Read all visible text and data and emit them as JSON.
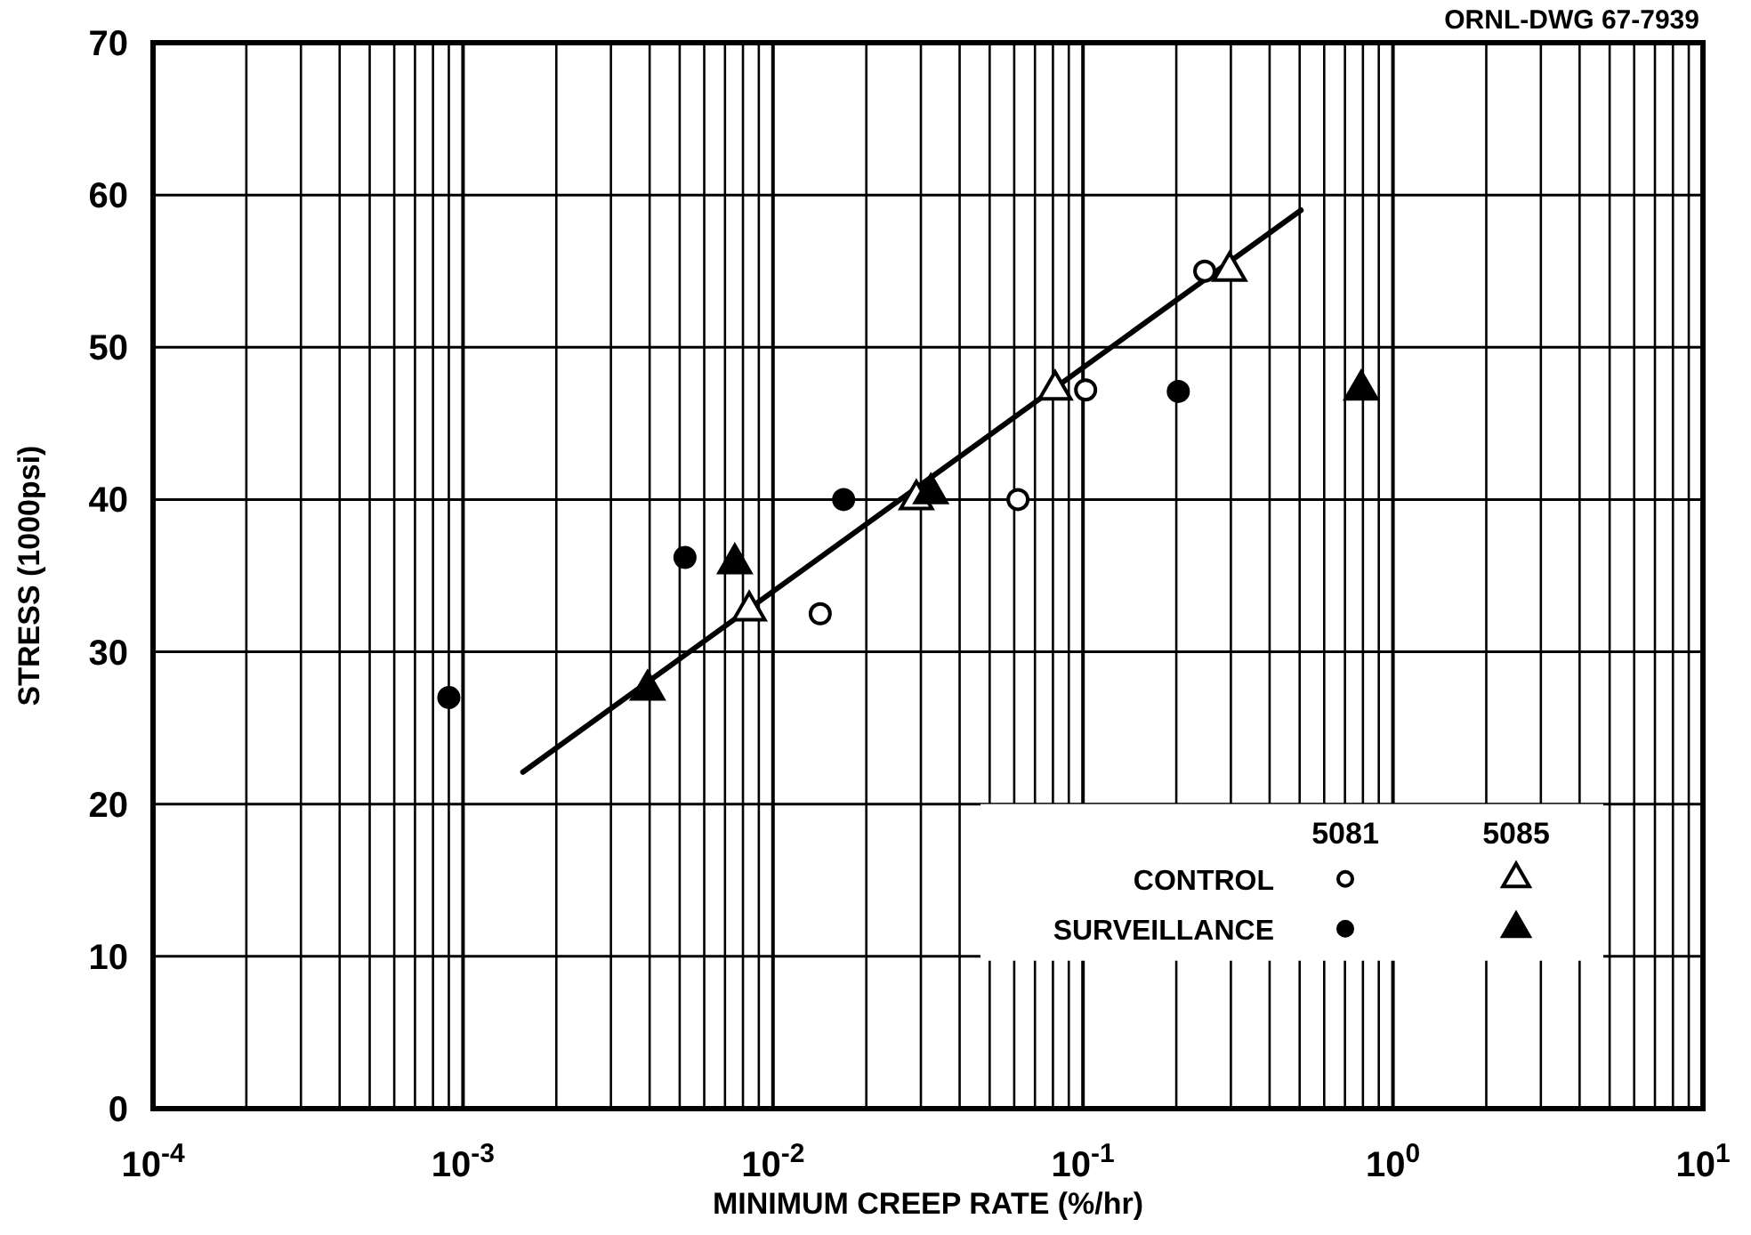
{
  "chart_data": {
    "type": "scatter",
    "xlabel": "MINIMUM CREEP RATE (%/hr)",
    "ylabel": "STRESS (1000psi)",
    "log": "x",
    "grid": true,
    "legend": "bottom right",
    "xlim": [
      0.0001,
      10
    ],
    "ylim": [
      0,
      70
    ],
    "xticks": [
      {
        "value": 0.0001,
        "label": "10$^{-4}$"
      },
      {
        "value": 0.0002,
        "label": null
      },
      {
        "value": 0.0003,
        "label": null
      },
      {
        "value": 0.0004,
        "label": null
      },
      {
        "value": 0.0005,
        "label": null
      },
      {
        "value": 0.0006,
        "label": null
      },
      {
        "value": 0.0007,
        "label": null
      },
      {
        "value": 0.0008,
        "label": null
      },
      {
        "value": 0.0009,
        "label": null
      },
      {
        "value": 0.001,
        "label": "10$^{-3}$"
      },
      {
        "value": 0.002,
        "label": null
      },
      {
        "value": 0.003,
        "label": null
      },
      {
        "value": 0.004,
        "label": null
      },
      {
        "value": 0.005,
        "label": null
      },
      {
        "value": 0.006,
        "label": null
      },
      {
        "value": 0.007,
        "label": null
      },
      {
        "value": 0.008,
        "label": null
      },
      {
        "value": 0.009,
        "label": null
      },
      {
        "value": 0.01,
        "label": "10$^{-2}$"
      },
      {
        "value": 0.02,
        "label": null
      },
      {
        "value": 0.03,
        "label": null
      },
      {
        "value": 0.04,
        "label": null
      },
      {
        "value": 0.05,
        "label": null
      },
      {
        "value": 0.06,
        "label": null
      },
      {
        "value": 0.07,
        "label": null
      },
      {
        "value": 0.08,
        "label": null
      },
      {
        "value": 0.09,
        "label": null
      },
      {
        "value": 0.1,
        "label": "10$^{-1}$"
      },
      {
        "value": 0.2,
        "label": null
      },
      {
        "value": 0.3,
        "label": null
      },
      {
        "value": 0.4,
        "label": null
      },
      {
        "value": 0.5,
        "label": null
      },
      {
        "value": 0.6,
        "label": null
      },
      {
        "value": 0.7,
        "label": null
      },
      {
        "value": 0.8,
        "label": null
      },
      {
        "value": 0.9,
        "label": null
      },
      {
        "value": 1,
        "label": "10$^{0}$"
      },
      {
        "value": 2,
        "label": null
      },
      {
        "value": 3,
        "label": null
      },
      {
        "value": 4,
        "label": null
      },
      {
        "value": 5,
        "label": null
      },
      {
        "value": 6,
        "label": null
      },
      {
        "value": 7,
        "label": null
      },
      {
        "value": 8,
        "label": null
      },
      {
        "value": 9,
        "label": null
      },
      {
        "value": 10,
        "label": "10$^{1}$"
      }
    ],
    "yticks": [
      0,
      10,
      20,
      30,
      40,
      50,
      60,
      70
    ],
    "annotations": [
      "ORNL-DWG 67-7939",
      "5081",
      "5085"
    ],
    "series": [
      {
        "name": "CONTROL",
        "marker": "circle",
        "color": "#ffffff",
        "x": [
          0.0142,
          0.0617,
          0.102,
          0.247
        ],
        "values": [
          32.5,
          40,
          47.2,
          55
        ]
      },
      {
        "marker": "triangle",
        "color": "#ffffff",
        "x": [
          0.00838,
          0.029,
          0.0813,
          0.297
        ],
        "values": [
          32.7,
          40,
          47.2,
          55
        ]
      },
      {
        "name": "SURVEILLANCE",
        "marker": "circle",
        "color": "#000000",
        "x": [
          0.0009,
          0.0052,
          0.0169,
          0.203
        ],
        "values": [
          27,
          36.2,
          40,
          47.1
        ]
      },
      {
        "marker": "triangle",
        "color": "#000000",
        "x": [
          0.00394,
          0.00753,
          0.0323,
          0.79
        ],
        "values": [
          27.5,
          35.8,
          40.4,
          47.2
        ]
      },
      {
        "type": "line",
        "marker": "none",
        "color": "#000000",
        "x": [
          0.00156,
          0.505
        ],
        "values": [
          22.1,
          59.0
        ]
      }
    ]
  }
}
